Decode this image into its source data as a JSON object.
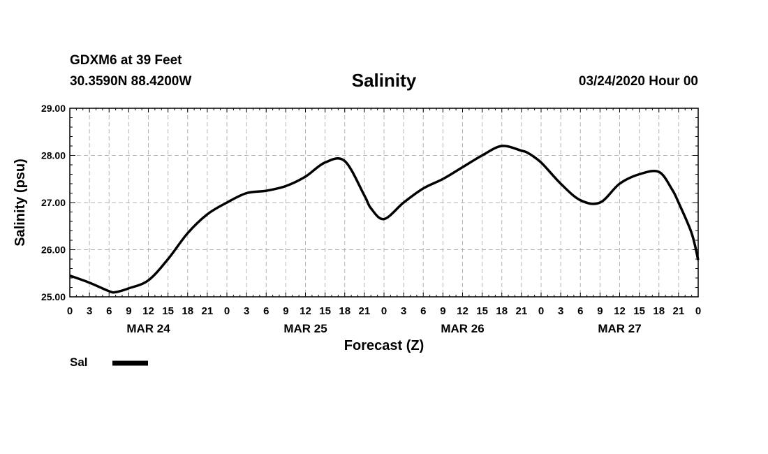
{
  "header": {
    "station": "GDXM6 at 39 Feet",
    "coords": "30.3590N 88.4200W",
    "title": "Salinity",
    "runtime": "03/24/2020 Hour 00"
  },
  "chart_data": {
    "type": "line",
    "title": "Salinity",
    "xlabel": "Forecast (Z)",
    "ylabel": "Salinity (psu)",
    "ylim": [
      25.0,
      29.0
    ],
    "xlim_hours": [
      0,
      96
    ],
    "y_ticks": [
      "25.00",
      "26.00",
      "27.00",
      "28.00",
      "29.00"
    ],
    "x_tick_labels": [
      "0",
      "3",
      "6",
      "9",
      "12",
      "15",
      "18",
      "21",
      "0",
      "3",
      "6",
      "9",
      "12",
      "15",
      "18",
      "21",
      "0",
      "3",
      "6",
      "9",
      "12",
      "15",
      "18",
      "21",
      "0",
      "3",
      "6",
      "9",
      "12",
      "15",
      "18",
      "21",
      "0"
    ],
    "day_labels": [
      {
        "label": "MAR 24",
        "center_hour": 12
      },
      {
        "label": "MAR 25",
        "center_hour": 36
      },
      {
        "label": "MAR 26",
        "center_hour": 60
      },
      {
        "label": "MAR 27",
        "center_hour": 84
      }
    ],
    "grid": true,
    "legend": {
      "position": "bottom-left",
      "entries": [
        {
          "name": "Sal",
          "color": "#000000"
        }
      ]
    },
    "series": [
      {
        "name": "Sal",
        "color": "#000000",
        "x_hours": [
          0,
          3,
          6,
          7,
          9,
          12,
          15,
          18,
          21,
          24,
          27,
          30,
          33,
          36,
          39,
          42,
          45,
          46,
          48,
          51,
          54,
          57,
          60,
          63,
          66,
          69,
          70,
          72,
          75,
          78,
          81,
          84,
          87,
          90,
          92,
          93,
          95,
          96
        ],
        "values": [
          25.45,
          25.3,
          25.12,
          25.1,
          25.18,
          25.35,
          25.8,
          26.35,
          26.75,
          27.0,
          27.2,
          27.25,
          27.35,
          27.55,
          27.85,
          27.88,
          27.15,
          26.88,
          26.65,
          27.0,
          27.3,
          27.5,
          27.75,
          28.0,
          28.2,
          28.1,
          28.05,
          27.85,
          27.4,
          27.05,
          27.0,
          27.4,
          27.6,
          27.65,
          27.28,
          27.0,
          26.35,
          25.78
        ]
      }
    ]
  }
}
